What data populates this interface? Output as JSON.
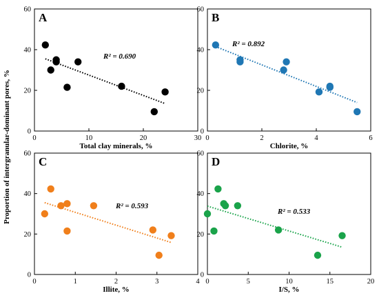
{
  "figure": {
    "shared_ylabel": "Proportion of intergranular-dominant pores, %"
  },
  "chart_data": [
    {
      "type": "scatter",
      "panel_label": "A",
      "xlabel": "Total clay minerals, %",
      "ylabel": "",
      "xlim": [
        0,
        30
      ],
      "ylim": [
        0,
        60
      ],
      "xticks": [
        "0",
        "10",
        "20",
        "30"
      ],
      "yticks": [
        "0",
        "20",
        "40",
        "60"
      ],
      "color": "#000000",
      "trendline": {
        "from": [
          2,
          35.5
        ],
        "to": [
          24,
          13.5
        ]
      },
      "r2_prefix": "R² = ",
      "r2_value": "0.690",
      "points": [
        {
          "x": 2.0,
          "y": 42.3
        },
        {
          "x": 3.0,
          "y": 30.0
        },
        {
          "x": 4.0,
          "y": 35.0
        },
        {
          "x": 4.0,
          "y": 34.0
        },
        {
          "x": 6.0,
          "y": 21.5
        },
        {
          "x": 8.0,
          "y": 34.0
        },
        {
          "x": 16.0,
          "y": 22.0
        },
        {
          "x": 22.0,
          "y": 9.5
        },
        {
          "x": 24.0,
          "y": 19.2
        }
      ]
    },
    {
      "type": "scatter",
      "panel_label": "B",
      "xlabel": "Chlorite, %",
      "ylabel": "",
      "xlim": [
        0,
        6
      ],
      "ylim": [
        0,
        60
      ],
      "xticks": [
        "0",
        "2",
        "4",
        "6"
      ],
      "yticks": [
        "0",
        "20",
        "40",
        "60"
      ],
      "color": "#1f77b4",
      "trendline": {
        "from": [
          0.3,
          41.5
        ],
        "to": [
          5.5,
          14.0
        ]
      },
      "r2_prefix": "R² = ",
      "r2_value": "0.892",
      "points": [
        {
          "x": 0.3,
          "y": 42.3
        },
        {
          "x": 1.2,
          "y": 35.0
        },
        {
          "x": 1.2,
          "y": 34.0
        },
        {
          "x": 2.8,
          "y": 30.0
        },
        {
          "x": 2.9,
          "y": 34.0
        },
        {
          "x": 4.1,
          "y": 19.2
        },
        {
          "x": 4.5,
          "y": 22.0
        },
        {
          "x": 4.5,
          "y": 21.5
        },
        {
          "x": 5.5,
          "y": 9.5
        }
      ]
    },
    {
      "type": "scatter",
      "panel_label": "C",
      "xlabel": "Illite, %",
      "ylabel": "",
      "xlim": [
        0,
        4
      ],
      "ylim": [
        0,
        60
      ],
      "xticks": [
        "0",
        "1",
        "2",
        "3",
        "4"
      ],
      "yticks": [
        "0",
        "20",
        "40",
        "60"
      ],
      "color": "#f07f1b",
      "trendline": {
        "from": [
          0.25,
          35.5
        ],
        "to": [
          3.35,
          15.8
        ]
      },
      "r2_prefix": "R² = ",
      "r2_value": "0.593",
      "points": [
        {
          "x": 0.25,
          "y": 30.0
        },
        {
          "x": 0.4,
          "y": 42.3
        },
        {
          "x": 0.65,
          "y": 34.0
        },
        {
          "x": 0.8,
          "y": 35.0
        },
        {
          "x": 0.8,
          "y": 21.5
        },
        {
          "x": 1.45,
          "y": 34.0
        },
        {
          "x": 2.9,
          "y": 22.0
        },
        {
          "x": 3.05,
          "y": 9.5
        },
        {
          "x": 3.35,
          "y": 19.2
        }
      ]
    },
    {
      "type": "scatter",
      "panel_label": "D",
      "xlabel": "I/S, %",
      "ylabel": "",
      "xlim": [
        0,
        20
      ],
      "ylim": [
        0,
        60
      ],
      "xticks": [
        "0",
        "5",
        "10",
        "15",
        "20"
      ],
      "yticks": [
        "0",
        "20",
        "40",
        "60"
      ],
      "color": "#1aa34a",
      "trendline": {
        "from": [
          0.0,
          33.8
        ],
        "to": [
          16.5,
          13.5
        ]
      },
      "r2_prefix": "R² = ",
      "r2_value": "0.533",
      "points": [
        {
          "x": 0.0,
          "y": 30.0
        },
        {
          "x": 0.8,
          "y": 21.5
        },
        {
          "x": 1.3,
          "y": 42.3
        },
        {
          "x": 2.0,
          "y": 35.0
        },
        {
          "x": 2.2,
          "y": 34.0
        },
        {
          "x": 3.7,
          "y": 34.0
        },
        {
          "x": 8.7,
          "y": 22.0
        },
        {
          "x": 13.5,
          "y": 9.5
        },
        {
          "x": 16.5,
          "y": 19.2
        }
      ]
    }
  ]
}
